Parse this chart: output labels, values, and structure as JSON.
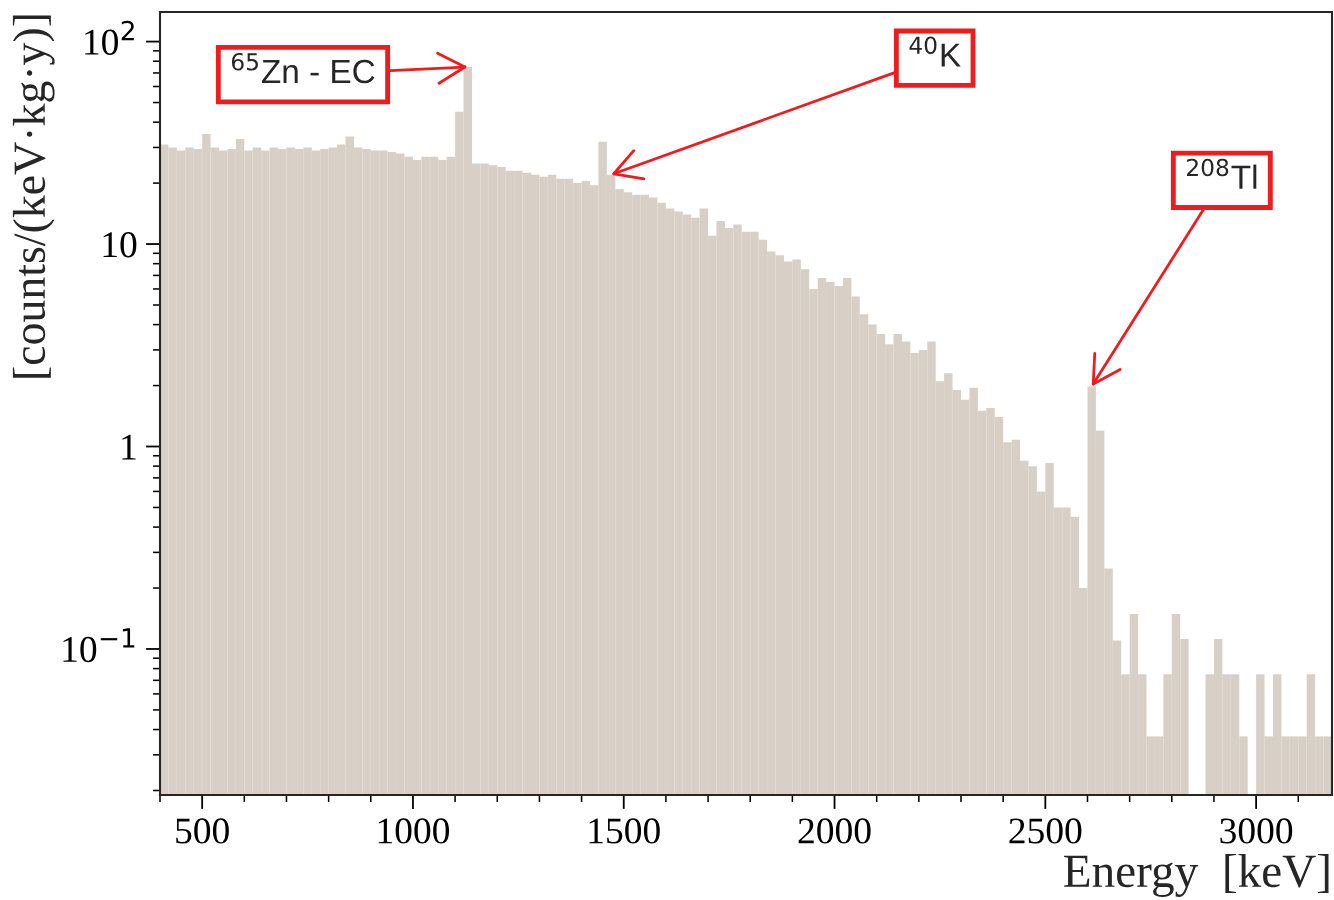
{
  "chart_data": {
    "type": "histogram",
    "xlabel": "Energy  [keV]",
    "ylabel": "[counts/(keV·kg·y)]",
    "bins": [
      400,
      420,
      440,
      460,
      480,
      500,
      520,
      540,
      560,
      580,
      600,
      620,
      640,
      660,
      680,
      700,
      720,
      740,
      760,
      780,
      800,
      820,
      840,
      860,
      880,
      900,
      920,
      940,
      960,
      980,
      1000,
      1020,
      1040,
      1060,
      1080,
      1100,
      1120,
      1140,
      1160,
      1180,
      1200,
      1220,
      1240,
      1260,
      1280,
      1300,
      1320,
      1340,
      1360,
      1380,
      1400,
      1420,
      1440,
      1460,
      1480,
      1500,
      1520,
      1540,
      1560,
      1580,
      1600,
      1620,
      1640,
      1660,
      1680,
      1700,
      1720,
      1740,
      1760,
      1780,
      1800,
      1820,
      1840,
      1860,
      1880,
      1900,
      1920,
      1940,
      1960,
      1980,
      2000,
      2020,
      2040,
      2060,
      2080,
      2100,
      2120,
      2140,
      2160,
      2180,
      2200,
      2220,
      2240,
      2260,
      2280,
      2300,
      2320,
      2340,
      2360,
      2380,
      2400,
      2420,
      2440,
      2460,
      2480,
      2500,
      2520,
      2540,
      2560,
      2580,
      2600,
      2620,
      2640,
      2660,
      2680,
      2700,
      2720,
      2740,
      2760,
      2780,
      2800,
      2820,
      2840,
      2860,
      2880,
      2900,
      2920,
      2940,
      2960,
      2980,
      3000,
      3020,
      3040,
      3060,
      3080,
      3100,
      3120,
      3140,
      3160,
      3180
    ],
    "values": [
      31,
      30,
      29,
      30,
      29.5,
      35,
      30,
      29,
      29.5,
      33,
      29,
      30,
      29,
      30,
      29.5,
      30,
      29.5,
      30,
      29,
      29.5,
      30,
      31,
      34,
      30,
      29.5,
      29,
      29,
      28.5,
      28,
      27,
      26,
      27,
      27,
      26,
      27,
      45,
      75,
      25,
      25,
      24.5,
      24,
      23,
      23,
      22.5,
      22,
      21.5,
      22,
      21,
      21,
      20,
      20.5,
      19.5,
      32,
      22,
      18.7,
      18,
      17.5,
      17.5,
      17,
      16,
      15,
      14.5,
      14,
      13.5,
      15,
      11,
      13,
      12,
      12.5,
      11.5,
      11.5,
      10.5,
      9.2,
      8.8,
      8.2,
      8.4,
      7.5,
      6,
      6.8,
      6.5,
      6.2,
      6.8,
      5.5,
      4.5,
      4.0,
      3.6,
      3.2,
      3.6,
      3.3,
      2.9,
      3.0,
      3.3,
      2.1,
      2.3,
      1.9,
      1.7,
      1.95,
      1.5,
      1.55,
      1.4,
      1.05,
      1.08,
      0.85,
      0.8,
      0.6,
      0.83,
      0.5,
      0.5,
      0.45,
      0.2,
      1.98,
      1.2,
      0.25,
      0.11,
      0.075,
      0.149,
      0.075,
      0.037,
      0.037,
      0.075,
      0.149,
      0.112,
      null,
      null,
      0.075,
      0.112,
      0.075,
      0.075,
      0.037,
      null,
      0.075,
      0.037,
      0.075,
      0.037,
      0.037,
      0.037,
      0.075,
      0.037,
      0.037
    ],
    "color": "#d8cfc6",
    "xlim": [
      400,
      3180
    ],
    "xticks": [
      500,
      1000,
      1500,
      2000,
      2500,
      3000
    ],
    "log": "y",
    "ylim": [
      0.019,
      140
    ],
    "yticks": [
      {
        "value": 0.1,
        "label": "10$^{−1}$"
      },
      1,
      10,
      {
        "value": 100,
        "label": "10$^{2}$"
      }
    ],
    "grid": false,
    "annotations": [
      {
        "text": "$^{65}$Zn - EC",
        "x": 1130,
        "y": 75
      },
      {
        "text": "$^{40}$K",
        "x": 1470,
        "y": 22
      },
      {
        "text": "$^{208}$Tl",
        "x": 2610,
        "y": 1.98
      }
    ]
  }
}
